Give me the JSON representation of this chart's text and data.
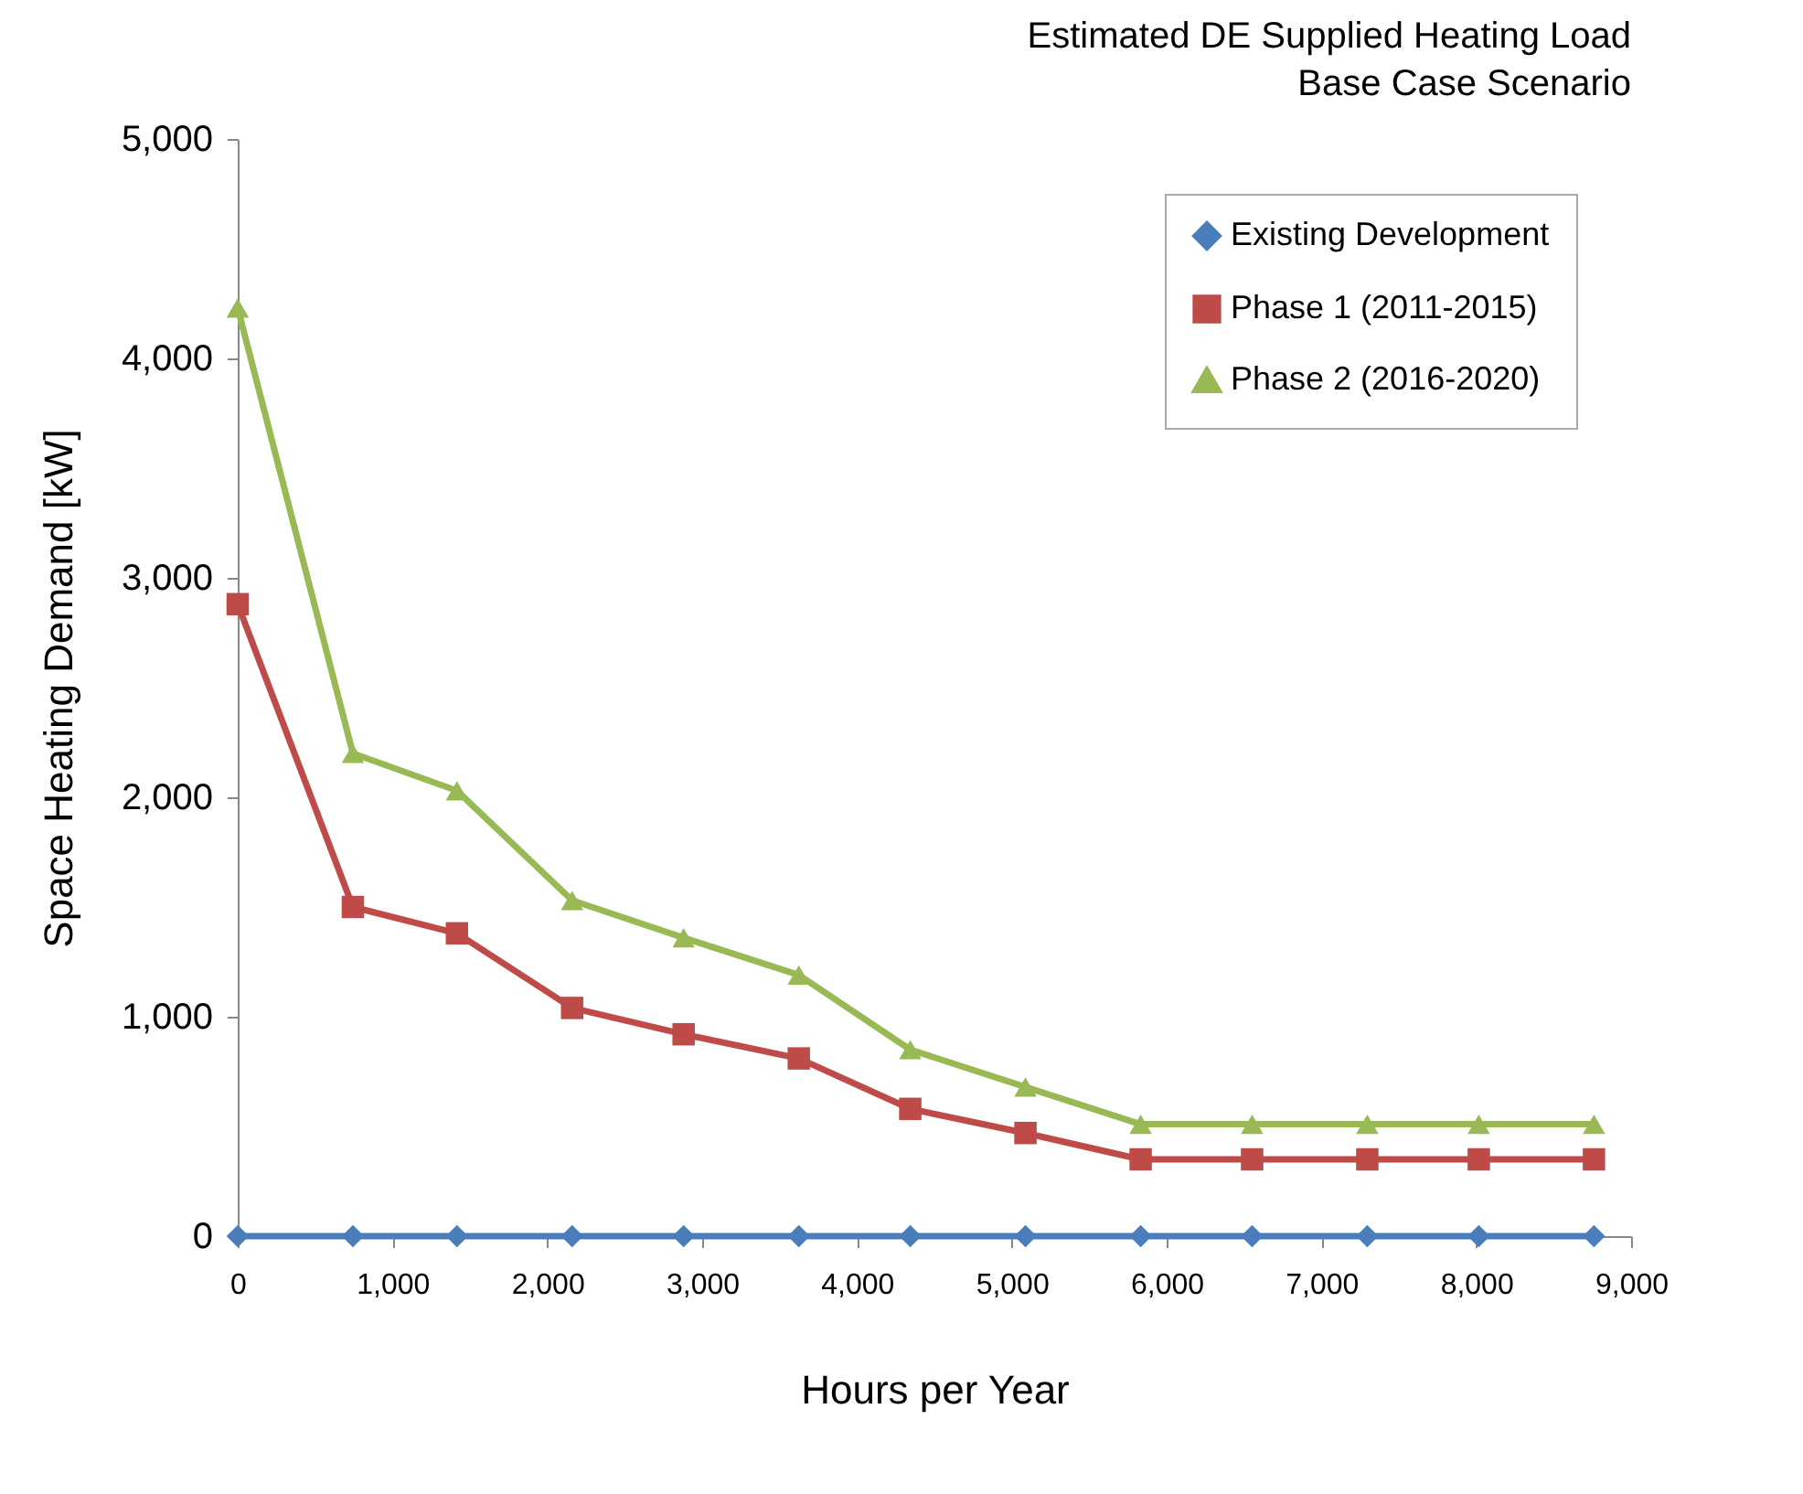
{
  "chart_data": {
    "type": "line",
    "title": "Estimated DE Supplied Heating Load",
    "subtitle": "Base Case Scenario",
    "xlabel": "Hours per Year",
    "ylabel": "Space Heating Demand  [kW]",
    "x": [
      0,
      744,
      1416,
      2160,
      2880,
      3624,
      4344,
      5088,
      5832,
      6552,
      7296,
      8016,
      8760
    ],
    "series": [
      {
        "name": "Existing Development",
        "color": "#4a7ebb",
        "marker": "diamond",
        "values": [
          0,
          0,
          0,
          0,
          0,
          0,
          0,
          0,
          0,
          0,
          0,
          0,
          0
        ]
      },
      {
        "name": "Phase 1 (2011-2015)",
        "color": "#be4b48",
        "marker": "square",
        "values": [
          2880,
          1500,
          1380,
          1040,
          920,
          810,
          580,
          470,
          350,
          350,
          350,
          350,
          350
        ]
      },
      {
        "name": "Phase 2 (2016-2020)",
        "color": "#98b954",
        "marker": "triangle",
        "values": [
          4230,
          2200,
          2030,
          1530,
          1360,
          1190,
          850,
          680,
          510,
          510,
          510,
          510,
          510
        ]
      }
    ],
    "xlim": [
      0,
      9000
    ],
    "xticks": [
      {
        "value": 0,
        "label": "0"
      },
      {
        "value": 1000,
        "label": "1,000"
      },
      {
        "value": 2000,
        "label": "2,000"
      },
      {
        "value": 3000,
        "label": "3,000"
      },
      {
        "value": 4000,
        "label": "4,000"
      },
      {
        "value": 5000,
        "label": "5,000"
      },
      {
        "value": 6000,
        "label": "6,000"
      },
      {
        "value": 7000,
        "label": "7,000"
      },
      {
        "value": 8000,
        "label": "8,000"
      },
      {
        "value": 9000,
        "label": "9,000"
      }
    ],
    "ylim": [
      0,
      5000
    ],
    "yticks": [
      {
        "value": 0,
        "label": "0"
      },
      {
        "value": 1000,
        "label": "1,000"
      },
      {
        "value": 2000,
        "label": "2,000"
      },
      {
        "value": 3000,
        "label": "3,000"
      },
      {
        "value": 4000,
        "label": "4,000"
      },
      {
        "value": 5000,
        "label": "5,000"
      }
    ],
    "grid": false,
    "legend": "top right",
    "line_style": "solid"
  }
}
